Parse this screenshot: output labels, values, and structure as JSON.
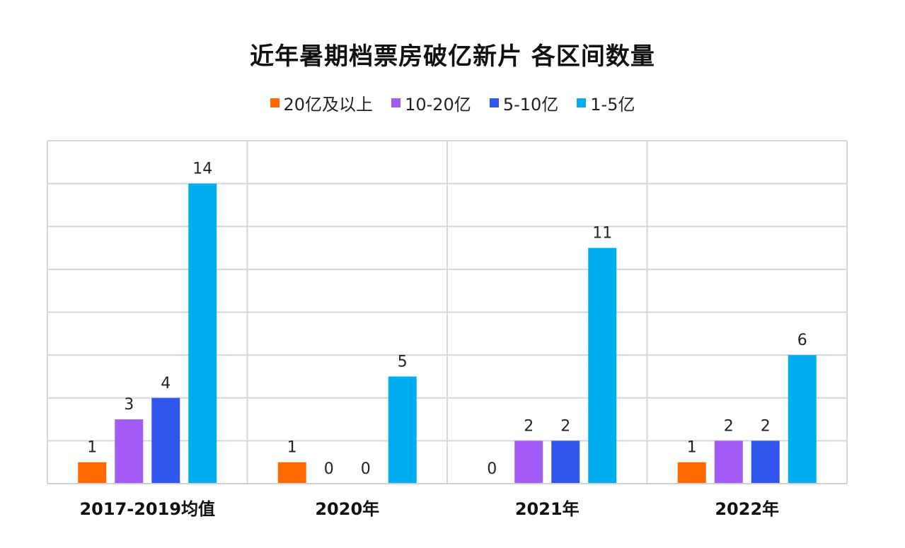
{
  "chart_data": {
    "type": "bar",
    "title": "近年暑期档票房破亿新片 各区间数量",
    "xlabel": "",
    "ylabel": "",
    "categories": [
      "2017-2019均值",
      "2020年",
      "2021年",
      "2022年"
    ],
    "series": [
      {
        "name": "20亿及以上",
        "color": "#FF6A00",
        "values": [
          1,
          1,
          0,
          1
        ],
        "labels": [
          "1",
          "1",
          "0",
          "1"
        ]
      },
      {
        "name": "10-20亿",
        "color": "#A25CF5",
        "values": [
          3,
          0,
          2,
          2
        ],
        "labels": [
          "3",
          "0",
          "2",
          "2"
        ]
      },
      {
        "name": "5-10亿",
        "color": "#3056EE",
        "values": [
          4,
          0,
          2,
          2
        ],
        "labels": [
          "4",
          "0",
          "2",
          "2"
        ]
      },
      {
        "name": "1-5亿",
        "color": "#00AEEF",
        "values": [
          14,
          5,
          11,
          6
        ],
        "labels": [
          "14",
          "5",
          "11",
          "6"
        ]
      }
    ],
    "ylim": [
      0,
      16
    ],
    "y_grid_step": 2,
    "grid": true,
    "legend_position": "top-center"
  }
}
